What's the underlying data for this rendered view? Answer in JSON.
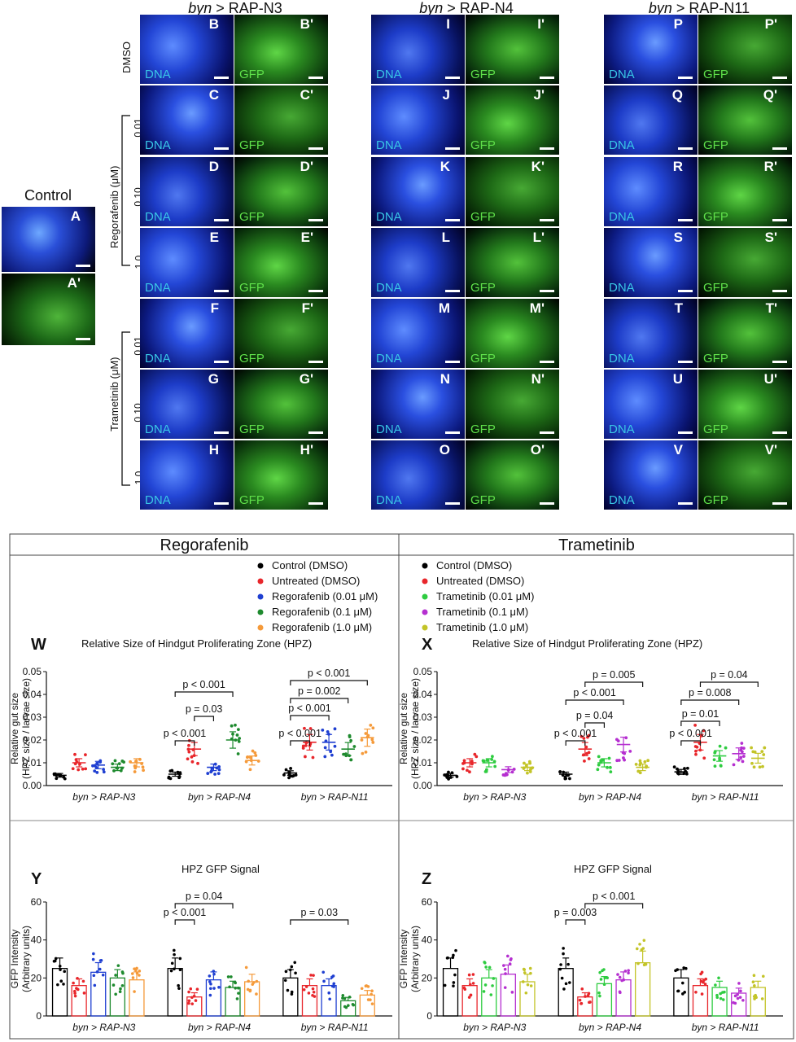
{
  "figure": {
    "columns": [
      {
        "genotype_italic": "byn",
        "genotype_rest": " > RAP-N3"
      },
      {
        "genotype_italic": "byn",
        "genotype_rest": " > RAP-N4"
      },
      {
        "genotype_italic": "byn",
        "genotype_rest": " > RAP-N11"
      }
    ],
    "control_title": "Control",
    "control_panels": [
      {
        "letter": "A",
        "channel": "DNA"
      },
      {
        "letter": "A'",
        "channel": "GFP"
      }
    ],
    "dmso_label": "DMSO",
    "drug_labels": {
      "regorafenib": "Regorafenib (μM)",
      "trametinib": "Trametinib (μM)"
    },
    "concentration_ticks": [
      "0.01",
      "0.10",
      "1.0"
    ],
    "channel_labels": {
      "dna": "DNA",
      "gfp": "GFP"
    },
    "panel_letters": [
      [
        "B",
        "B'",
        "I",
        "I'",
        "P",
        "P'"
      ],
      [
        "C",
        "C'",
        "J",
        "J'",
        "Q",
        "Q'"
      ],
      [
        "D",
        "D'",
        "K",
        "K'",
        "R",
        "R'"
      ],
      [
        "E",
        "E'",
        "L",
        "L'",
        "S",
        "S'"
      ],
      [
        "F",
        "F'",
        "M",
        "M'",
        "T",
        "T'"
      ],
      [
        "G",
        "G'",
        "N",
        "N'",
        "U",
        "U'"
      ],
      [
        "H",
        "H'",
        "O",
        "O'",
        "V",
        "V'"
      ]
    ],
    "section_titles": {
      "left": "Regorafenib",
      "right": "Trametinib"
    },
    "legend_left": [
      {
        "label": "Control (DMSO)",
        "color": "#000000"
      },
      {
        "label": "Untreated (DMSO)",
        "color": "#e8262b"
      },
      {
        "label": "Regorafenib (0.01 μM)",
        "color": "#1f3fd1"
      },
      {
        "label": "Regorafenib (0.1 μM)",
        "color": "#1e8a2e"
      },
      {
        "label": "Regorafenib (1.0  μM)",
        "color": "#f59a3a"
      }
    ],
    "legend_right": [
      {
        "label": "Control (DMSO)",
        "color": "#000000"
      },
      {
        "label": "Untreated (DMSO)",
        "color": "#e8262b"
      },
      {
        "label": "Trametinib (0.01 μM)",
        "color": "#2ecc40"
      },
      {
        "label": "Trametinib (0.1 μM)",
        "color": "#b52fd0"
      },
      {
        "label": "Trametinib (1.0  μM)",
        "color": "#c3c428"
      }
    ]
  },
  "chart_data": [
    {
      "panel": "W",
      "type": "scatter",
      "title": "Relative Size of Hindgut Proliferating  Zone (HPZ)",
      "ylabel": "Relative gut size\n(HPZ size / larvae size)",
      "ylabel_lines": [
        "Relative gut size",
        "(HPZ size / larvae size)"
      ],
      "ylim": [
        0,
        0.05
      ],
      "yticks": [
        "0.00",
        "0.01",
        "0.02",
        "0.03",
        "0.04",
        "0.05"
      ],
      "groups": [
        "byn > RAP-N3",
        "byn > RAP-N4",
        "byn > RAP-N11"
      ],
      "series": [
        {
          "name": "Control (DMSO)",
          "means": [
            0.0045,
            0.005,
            0.0055
          ]
        },
        {
          "name": "Untreated (DMSO)",
          "means": [
            0.01,
            0.016,
            0.019
          ]
        },
        {
          "name": "Regorafenib (0.01 μM)",
          "means": [
            0.009,
            0.008,
            0.019
          ]
        },
        {
          "name": "Regorafenib (0.1 μM)",
          "means": [
            0.008,
            0.02,
            0.016
          ]
        },
        {
          "name": "Regorafenib (1.0  μM)",
          "means": [
            0.01,
            0.011,
            0.021
          ]
        }
      ],
      "comparisons": [
        "p < 0.001",
        "p = 0.03",
        "p < 0.001",
        "p < 0.001",
        "p < 0.001",
        "p = 0.002",
        "p < 0.001"
      ]
    },
    {
      "panel": "X",
      "type": "scatter",
      "title": "Relative Size of Hindgut Proliferating  Zone (HPZ)",
      "ylabel_lines": [
        "Relative gut size",
        "(HPZ size / larvae size)"
      ],
      "ylim": [
        0,
        0.05
      ],
      "yticks": [
        "0.00",
        "0.01",
        "0.02",
        "0.03",
        "0.04",
        "0.05"
      ],
      "groups": [
        "byn > RAP-N3",
        "byn > RAP-N4",
        "byn > RAP-N11"
      ],
      "series": [
        {
          "name": "Control (DMSO)",
          "means": [
            0.0045,
            0.005,
            0.006
          ]
        },
        {
          "name": "Untreated (DMSO)",
          "means": [
            0.01,
            0.016,
            0.019
          ]
        },
        {
          "name": "Trametinib (0.01 μM)",
          "means": [
            0.01,
            0.01,
            0.013
          ]
        },
        {
          "name": "Trametinib (0.1 μM)",
          "means": [
            0.007,
            0.018,
            0.014
          ]
        },
        {
          "name": "Trametinib (1.0  μM)",
          "means": [
            0.008,
            0.008,
            0.012
          ]
        }
      ],
      "comparisons": [
        "p < 0.001",
        "p = 0.04",
        "p < 0.001",
        "p = 0.005",
        "p < 0.001",
        "p = 0.01",
        "p = 0.008",
        "p = 0.04"
      ]
    },
    {
      "panel": "Y",
      "type": "bar",
      "title": "HPZ GFP Signal",
      "ylabel_lines": [
        "GFP Intensity",
        "(Arbitrary units)"
      ],
      "ylim": [
        0,
        60
      ],
      "yticks": [
        "0",
        "20",
        "40",
        "60"
      ],
      "groups": [
        "byn > RAP-N3",
        "byn > RAP-N4",
        "byn > RAP-N11"
      ],
      "series": [
        {
          "name": "Control (DMSO)",
          "values": [
            25,
            25,
            20
          ]
        },
        {
          "name": "Untreated (DMSO)",
          "values": [
            16,
            10,
            16
          ]
        },
        {
          "name": "Regorafenib (0.01 μM)",
          "values": [
            23,
            19,
            16
          ]
        },
        {
          "name": "Regorafenib (0.1 μM)",
          "values": [
            20,
            15,
            8
          ]
        },
        {
          "name": "Regorafenib (1.0  μM)",
          "values": [
            19,
            18,
            11
          ]
        }
      ],
      "comparisons": [
        "p < 0.001",
        "p = 0.04",
        "p = 0.03"
      ]
    },
    {
      "panel": "Z",
      "type": "bar",
      "title": "HPZ GFP Signal",
      "ylabel_lines": [
        "GFP Intensity",
        "(Arbitrary units)"
      ],
      "ylim": [
        0,
        60
      ],
      "yticks": [
        "0",
        "20",
        "40",
        "60"
      ],
      "groups": [
        "byn > RAP-N3",
        "byn > RAP-N4",
        "byn > RAP-N11"
      ],
      "series": [
        {
          "name": "Control (DMSO)",
          "values": [
            25,
            25,
            20
          ]
        },
        {
          "name": "Untreated (DMSO)",
          "values": [
            16,
            10,
            16
          ]
        },
        {
          "name": "Trametinib (0.01 μM)",
          "values": [
            20,
            17,
            15
          ]
        },
        {
          "name": "Trametinib (0.1 μM)",
          "values": [
            22,
            19,
            12
          ]
        },
        {
          "name": "Trametinib (1.0  μM)",
          "values": [
            18,
            28,
            15
          ]
        }
      ],
      "comparisons": [
        "p = 0.003",
        "p < 0.001"
      ]
    }
  ]
}
